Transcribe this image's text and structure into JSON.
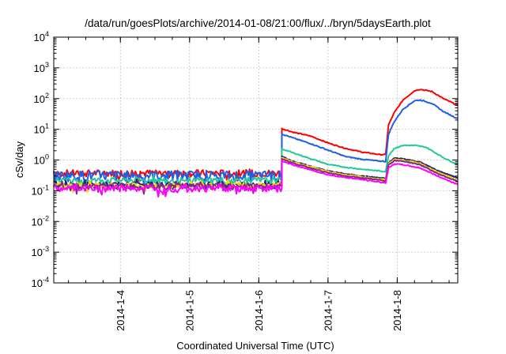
{
  "chart_data": {
    "type": "line",
    "title": "/data/run/goesPlots/archive/2014-01-08/21:00/flux/../bryn/5daysEarth.plot",
    "xlabel": "Coordinated Universal Time (UTC)",
    "ylabel": "cSv/day",
    "yscale": "log",
    "ylim": [
      0.0001,
      10000
    ],
    "xlim": [
      "2014-01-03T00:54",
      "2014-01-08T21:00"
    ],
    "y_ticks": [
      {
        "value": 0.0001,
        "base": "10",
        "exp": "-4"
      },
      {
        "value": 0.001,
        "base": "10",
        "exp": "-3"
      },
      {
        "value": 0.01,
        "base": "10",
        "exp": "-2"
      },
      {
        "value": 0.1,
        "base": "10",
        "exp": "-1"
      },
      {
        "value": 1,
        "base": "10",
        "exp": "0"
      },
      {
        "value": 10,
        "base": "10",
        "exp": "1"
      },
      {
        "value": 100,
        "base": "10",
        "exp": "2"
      },
      {
        "value": 1000,
        "base": "10",
        "exp": "3"
      },
      {
        "value": 10000,
        "base": "10",
        "exp": "4"
      }
    ],
    "x_ticks": [
      {
        "value": "2014-01-04",
        "label": "2014-1-4"
      },
      {
        "value": "2014-01-05",
        "label": "2014-1-5"
      },
      {
        "value": "2014-01-06",
        "label": "2014-1-6"
      },
      {
        "value": "2014-01-07",
        "label": "2014-1-7"
      },
      {
        "value": "2014-01-08",
        "label": "2014-1-8"
      }
    ],
    "grid": true,
    "legend": "none",
    "series": [
      {
        "color": "#ff0000",
        "baseline": 0.38,
        "noise": 0.1,
        "points": [
          [
            "2014-01-06T08:00",
            10.5
          ],
          [
            "2014-01-06T12:00",
            8.0
          ],
          [
            "2014-01-06T18:00",
            6.0
          ],
          [
            "2014-01-07T00:00",
            3.6
          ],
          [
            "2014-01-07T06:00",
            2.4
          ],
          [
            "2014-01-07T12:00",
            1.8
          ],
          [
            "2014-01-07T18:00",
            1.5
          ],
          [
            "2014-01-07T20:00",
            1.5
          ],
          [
            "2014-01-07T21:00",
            14
          ],
          [
            "2014-01-07T23:00",
            35
          ],
          [
            "2014-01-08T02:00",
            90
          ],
          [
            "2014-01-08T06:00",
            180
          ],
          [
            "2014-01-08T08:00",
            200
          ],
          [
            "2014-01-08T12:00",
            170
          ],
          [
            "2014-01-08T16:00",
            100
          ],
          [
            "2014-01-08T21:00",
            60
          ]
        ]
      },
      {
        "color": "#1f5fe6",
        "baseline": 0.32,
        "noise": 0.12,
        "points": [
          [
            "2014-01-06T08:00",
            7.0
          ],
          [
            "2014-01-06T12:00",
            5.2
          ],
          [
            "2014-01-06T18:00",
            3.4
          ],
          [
            "2014-01-07T00:00",
            2.1
          ],
          [
            "2014-01-07T06:00",
            1.3
          ],
          [
            "2014-01-07T12:00",
            1.05
          ],
          [
            "2014-01-07T18:00",
            0.92
          ],
          [
            "2014-01-07T20:00",
            0.9
          ],
          [
            "2014-01-07T21:00",
            7
          ],
          [
            "2014-01-07T23:00",
            18
          ],
          [
            "2014-01-08T02:00",
            45
          ],
          [
            "2014-01-08T06:00",
            85
          ],
          [
            "2014-01-08T08:00",
            90
          ],
          [
            "2014-01-08T12:00",
            70
          ],
          [
            "2014-01-08T16:00",
            38
          ],
          [
            "2014-01-08T21:00",
            22
          ]
        ]
      },
      {
        "color": "#20c997",
        "baseline": 0.22,
        "noise": 0.05,
        "points": [
          [
            "2014-01-06T08:00",
            2.3
          ],
          [
            "2014-01-06T12:00",
            1.7
          ],
          [
            "2014-01-06T18:00",
            1.1
          ],
          [
            "2014-01-07T00:00",
            0.72
          ],
          [
            "2014-01-07T06:00",
            0.58
          ],
          [
            "2014-01-07T12:00",
            0.5
          ],
          [
            "2014-01-07T20:00",
            0.42
          ],
          [
            "2014-01-07T21:00",
            1.4
          ],
          [
            "2014-01-07T23:00",
            2.4
          ],
          [
            "2014-01-08T02:00",
            3.0
          ],
          [
            "2014-01-08T06:00",
            3.0
          ],
          [
            "2014-01-08T10:00",
            2.6
          ],
          [
            "2014-01-08T16:00",
            1.2
          ],
          [
            "2014-01-08T21:00",
            0.7
          ]
        ]
      },
      {
        "color": "#1a237e",
        "baseline": 0.16,
        "noise": 0.03,
        "points": [
          [
            "2014-01-06T08:00",
            1.3
          ],
          [
            "2014-01-06T12:00",
            0.9
          ],
          [
            "2014-01-06T18:00",
            0.62
          ],
          [
            "2014-01-07T00:00",
            0.44
          ],
          [
            "2014-01-07T06:00",
            0.35
          ],
          [
            "2014-01-07T12:00",
            0.3
          ],
          [
            "2014-01-07T20:00",
            0.25
          ],
          [
            "2014-01-07T21:00",
            0.8
          ],
          [
            "2014-01-07T23:00",
            1.15
          ],
          [
            "2014-01-08T02:00",
            1.1
          ],
          [
            "2014-01-08T08:00",
            0.85
          ],
          [
            "2014-01-08T14:00",
            0.45
          ],
          [
            "2014-01-08T21:00",
            0.26
          ]
        ]
      },
      {
        "color": "#ffd400",
        "baseline": 0.15,
        "noise": 0.03,
        "points": [
          [
            "2014-01-06T08:00",
            1.2
          ],
          [
            "2014-01-06T12:00",
            0.85
          ],
          [
            "2014-01-06T18:00",
            0.6
          ],
          [
            "2014-01-07T00:00",
            0.42
          ],
          [
            "2014-01-07T06:00",
            0.33
          ],
          [
            "2014-01-07T12:00",
            0.28
          ],
          [
            "2014-01-07T20:00",
            0.23
          ],
          [
            "2014-01-07T21:00",
            0.75
          ],
          [
            "2014-01-07T23:00",
            1.05
          ],
          [
            "2014-01-08T02:00",
            1.0
          ],
          [
            "2014-01-08T08:00",
            0.78
          ],
          [
            "2014-01-08T14:00",
            0.4
          ],
          [
            "2014-01-08T21:00",
            0.22
          ]
        ]
      },
      {
        "color": "#7b2d8b",
        "baseline": 0.14,
        "noise": 0.03,
        "points": [
          [
            "2014-01-06T08:00",
            1.1
          ],
          [
            "2014-01-06T12:00",
            0.78
          ],
          [
            "2014-01-06T18:00",
            0.55
          ],
          [
            "2014-01-07T00:00",
            0.38
          ],
          [
            "2014-01-07T06:00",
            0.3
          ],
          [
            "2014-01-07T12:00",
            0.26
          ],
          [
            "2014-01-07T20:00",
            0.21
          ],
          [
            "2014-01-07T21:00",
            0.7
          ],
          [
            "2014-01-07T23:00",
            0.95
          ],
          [
            "2014-01-08T02:00",
            0.92
          ],
          [
            "2014-01-08T08:00",
            0.7
          ],
          [
            "2014-01-08T14:00",
            0.36
          ],
          [
            "2014-01-08T21:00",
            0.2
          ]
        ]
      },
      {
        "color": "#ff00ff",
        "baseline": 0.12,
        "noise": 0.03,
        "points": [
          [
            "2014-01-06T08:00",
            0.95
          ],
          [
            "2014-01-06T12:00",
            0.68
          ],
          [
            "2014-01-06T18:00",
            0.48
          ],
          [
            "2014-01-07T00:00",
            0.33
          ],
          [
            "2014-01-07T06:00",
            0.27
          ],
          [
            "2014-01-07T12:00",
            0.23
          ],
          [
            "2014-01-07T20:00",
            0.18
          ],
          [
            "2014-01-07T21:00",
            0.55
          ],
          [
            "2014-01-07T23:00",
            0.75
          ],
          [
            "2014-01-08T02:00",
            0.7
          ],
          [
            "2014-01-08T08:00",
            0.55
          ],
          [
            "2014-01-08T14:00",
            0.3
          ],
          [
            "2014-01-08T21:00",
            0.16
          ]
        ]
      }
    ]
  }
}
